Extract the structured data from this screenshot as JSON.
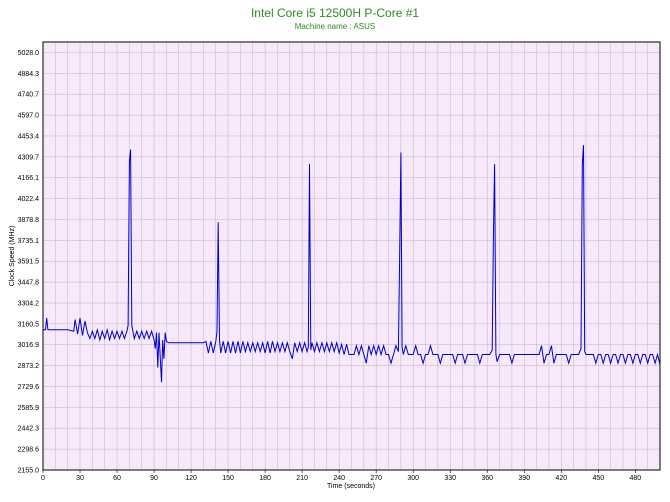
{
  "header": {
    "title": "Intel Core i5 12500H P-Core #1",
    "subtitle": "Machine name : ASUS"
  },
  "colors": {
    "title": "#2e8b22",
    "plot_background": "#f7e8fb",
    "grid": "#b8b8b8",
    "series": "#0000c8"
  },
  "chart_data": {
    "type": "line",
    "title": "Intel Core i5 12500H P-Core #1",
    "subtitle": "Machine name : ASUS",
    "xlabel": "Time (seconds)",
    "ylabel": "Clock Speed (MHz)",
    "xlim": [
      0,
      500
    ],
    "ylim": [
      2155.0,
      5100
    ],
    "grid": true,
    "legend": "none",
    "x_ticks": [
      0,
      30,
      60,
      90,
      120,
      150,
      180,
      210,
      240,
      270,
      300,
      330,
      360,
      390,
      420,
      450,
      480
    ],
    "y_ticks": [
      "2155.0",
      "2298.6",
      "2442.3",
      "2585.9",
      "2729.6",
      "2873.2",
      "3016.9",
      "3160.5",
      "3304.2",
      "3447.8",
      "3591.5",
      "3735.1",
      "3878.8",
      "4022.4",
      "4166.1",
      "4309.7",
      "4453.4",
      "4597.0",
      "4740.7",
      "4884.3",
      "5028.0"
    ],
    "series": [
      {
        "values": [
          [
            0,
            3120
          ],
          [
            2,
            3120
          ],
          [
            3,
            3200
          ],
          [
            4,
            3120
          ],
          [
            20,
            3120
          ],
          [
            25,
            3110
          ],
          [
            26,
            3190
          ],
          [
            28,
            3090
          ],
          [
            30,
            3200
          ],
          [
            32,
            3080
          ],
          [
            34,
            3180
          ],
          [
            36,
            3100
          ],
          [
            38,
            3060
          ],
          [
            40,
            3110
          ],
          [
            42,
            3060
          ],
          [
            44,
            3120
          ],
          [
            46,
            3050
          ],
          [
            48,
            3110
          ],
          [
            50,
            3060
          ],
          [
            52,
            3120
          ],
          [
            54,
            3050
          ],
          [
            56,
            3110
          ],
          [
            58,
            3060
          ],
          [
            60,
            3110
          ],
          [
            62,
            3060
          ],
          [
            64,
            3110
          ],
          [
            66,
            3060
          ],
          [
            68,
            3110
          ],
          [
            69,
            3150
          ],
          [
            70,
            4280
          ],
          [
            71,
            4360
          ],
          [
            72,
            3150
          ],
          [
            74,
            3060
          ],
          [
            76,
            3110
          ],
          [
            78,
            3060
          ],
          [
            80,
            3110
          ],
          [
            82,
            3060
          ],
          [
            84,
            3110
          ],
          [
            86,
            3060
          ],
          [
            88,
            3110
          ],
          [
            90,
            3050
          ],
          [
            91,
            2990
          ],
          [
            92,
            3100
          ],
          [
            93,
            2860
          ],
          [
            94,
            3100
          ],
          [
            96,
            2760
          ],
          [
            97,
            3050
          ],
          [
            98,
            2920
          ],
          [
            99,
            3100
          ],
          [
            100,
            3040
          ],
          [
            102,
            3030
          ],
          [
            104,
            3030
          ],
          [
            106,
            3030
          ],
          [
            108,
            3030
          ],
          [
            110,
            3030
          ],
          [
            112,
            3030
          ],
          [
            114,
            3030
          ],
          [
            116,
            3030
          ],
          [
            118,
            3030
          ],
          [
            120,
            3030
          ],
          [
            122,
            3030
          ],
          [
            124,
            3030
          ],
          [
            126,
            3030
          ],
          [
            128,
            3030
          ],
          [
            130,
            3030
          ],
          [
            132,
            3040
          ],
          [
            134,
            2960
          ],
          [
            136,
            3040
          ],
          [
            138,
            2960
          ],
          [
            140,
            3040
          ],
          [
            141,
            3110
          ],
          [
            142,
            3860
          ],
          [
            143,
            3050
          ],
          [
            144,
            2960
          ],
          [
            146,
            3040
          ],
          [
            148,
            2960
          ],
          [
            150,
            3040
          ],
          [
            152,
            2960
          ],
          [
            154,
            3040
          ],
          [
            156,
            2960
          ],
          [
            158,
            3040
          ],
          [
            160,
            2960
          ],
          [
            162,
            3040
          ],
          [
            164,
            2970
          ],
          [
            166,
            3030
          ],
          [
            168,
            2970
          ],
          [
            170,
            3030
          ],
          [
            172,
            2970
          ],
          [
            174,
            3030
          ],
          [
            176,
            2970
          ],
          [
            178,
            3030
          ],
          [
            180,
            2960
          ],
          [
            182,
            3040
          ],
          [
            184,
            2960
          ],
          [
            186,
            3040
          ],
          [
            188,
            2970
          ],
          [
            190,
            3030
          ],
          [
            192,
            2970
          ],
          [
            194,
            3030
          ],
          [
            196,
            2970
          ],
          [
            198,
            3030
          ],
          [
            200,
            2970
          ],
          [
            202,
            2920
          ],
          [
            204,
            3030
          ],
          [
            206,
            2970
          ],
          [
            208,
            3030
          ],
          [
            210,
            2970
          ],
          [
            212,
            3030
          ],
          [
            214,
            2970
          ],
          [
            215,
            3000
          ],
          [
            216,
            4260
          ],
          [
            217,
            2980
          ],
          [
            218,
            3030
          ],
          [
            220,
            2970
          ],
          [
            222,
            3030
          ],
          [
            224,
            2970
          ],
          [
            226,
            3030
          ],
          [
            228,
            2970
          ],
          [
            230,
            3030
          ],
          [
            232,
            2970
          ],
          [
            234,
            3030
          ],
          [
            236,
            2970
          ],
          [
            238,
            3030
          ],
          [
            240,
            2960
          ],
          [
            242,
            3020
          ],
          [
            244,
            2950
          ],
          [
            246,
            3020
          ],
          [
            248,
            2950
          ],
          [
            250,
            2950
          ],
          [
            252,
            2950
          ],
          [
            254,
            3010
          ],
          [
            256,
            2950
          ],
          [
            258,
            3010
          ],
          [
            260,
            2950
          ],
          [
            262,
            2890
          ],
          [
            264,
            3010
          ],
          [
            266,
            2950
          ],
          [
            268,
            3010
          ],
          [
            270,
            2950
          ],
          [
            272,
            3010
          ],
          [
            274,
            2950
          ],
          [
            276,
            3010
          ],
          [
            278,
            2950
          ],
          [
            280,
            2950
          ],
          [
            282,
            2890
          ],
          [
            284,
            2950
          ],
          [
            286,
            3010
          ],
          [
            288,
            2970
          ],
          [
            289,
            3600
          ],
          [
            290,
            4340
          ],
          [
            291,
            3000
          ],
          [
            292,
            2950
          ],
          [
            294,
            3010
          ],
          [
            296,
            2950
          ],
          [
            298,
            2950
          ],
          [
            300,
            2950
          ],
          [
            302,
            3010
          ],
          [
            304,
            2950
          ],
          [
            306,
            2950
          ],
          [
            308,
            2890
          ],
          [
            310,
            2950
          ],
          [
            312,
            2950
          ],
          [
            314,
            3010
          ],
          [
            316,
            2950
          ],
          [
            318,
            2950
          ],
          [
            320,
            2950
          ],
          [
            322,
            2890
          ],
          [
            324,
            2950
          ],
          [
            326,
            2950
          ],
          [
            328,
            2950
          ],
          [
            330,
            2950
          ],
          [
            332,
            2950
          ],
          [
            334,
            2890
          ],
          [
            336,
            2950
          ],
          [
            338,
            2950
          ],
          [
            340,
            2950
          ],
          [
            342,
            2890
          ],
          [
            344,
            2950
          ],
          [
            346,
            2950
          ],
          [
            348,
            2950
          ],
          [
            350,
            2950
          ],
          [
            352,
            2950
          ],
          [
            354,
            2890
          ],
          [
            356,
            2950
          ],
          [
            358,
            2950
          ],
          [
            360,
            2950
          ],
          [
            362,
            2950
          ],
          [
            364,
            2980
          ],
          [
            365,
            3760
          ],
          [
            366,
            4260
          ],
          [
            367,
            2950
          ],
          [
            368,
            2900
          ],
          [
            370,
            2950
          ],
          [
            372,
            2950
          ],
          [
            374,
            2950
          ],
          [
            376,
            2950
          ],
          [
            378,
            2950
          ],
          [
            380,
            2890
          ],
          [
            382,
            2950
          ],
          [
            384,
            2950
          ],
          [
            386,
            2950
          ],
          [
            388,
            2950
          ],
          [
            390,
            2950
          ],
          [
            392,
            2950
          ],
          [
            394,
            2950
          ],
          [
            396,
            2950
          ],
          [
            398,
            2950
          ],
          [
            400,
            2950
          ],
          [
            402,
            2950
          ],
          [
            404,
            3010
          ],
          [
            406,
            2890
          ],
          [
            408,
            2950
          ],
          [
            410,
            2950
          ],
          [
            412,
            3010
          ],
          [
            414,
            2890
          ],
          [
            416,
            2950
          ],
          [
            418,
            2950
          ],
          [
            420,
            2950
          ],
          [
            422,
            2950
          ],
          [
            424,
            2950
          ],
          [
            426,
            2890
          ],
          [
            428,
            2950
          ],
          [
            430,
            2950
          ],
          [
            432,
            2950
          ],
          [
            434,
            2950
          ],
          [
            436,
            2990
          ],
          [
            437,
            4260
          ],
          [
            438,
            4390
          ],
          [
            439,
            2970
          ],
          [
            440,
            2950
          ],
          [
            442,
            2950
          ],
          [
            444,
            2950
          ],
          [
            446,
            2950
          ],
          [
            448,
            2890
          ],
          [
            450,
            2950
          ],
          [
            452,
            2950
          ],
          [
            454,
            2890
          ],
          [
            456,
            2950
          ],
          [
            458,
            2950
          ],
          [
            460,
            2890
          ],
          [
            462,
            2950
          ],
          [
            464,
            2950
          ],
          [
            466,
            2890
          ],
          [
            468,
            2950
          ],
          [
            470,
            2950
          ],
          [
            472,
            2890
          ],
          [
            474,
            2950
          ],
          [
            476,
            2950
          ],
          [
            478,
            2890
          ],
          [
            480,
            2950
          ],
          [
            482,
            2950
          ],
          [
            484,
            2890
          ],
          [
            486,
            2950
          ],
          [
            488,
            2950
          ],
          [
            490,
            2890
          ],
          [
            492,
            2950
          ],
          [
            494,
            2950
          ],
          [
            496,
            2890
          ],
          [
            498,
            2950
          ],
          [
            500,
            2880
          ]
        ]
      }
    ]
  }
}
